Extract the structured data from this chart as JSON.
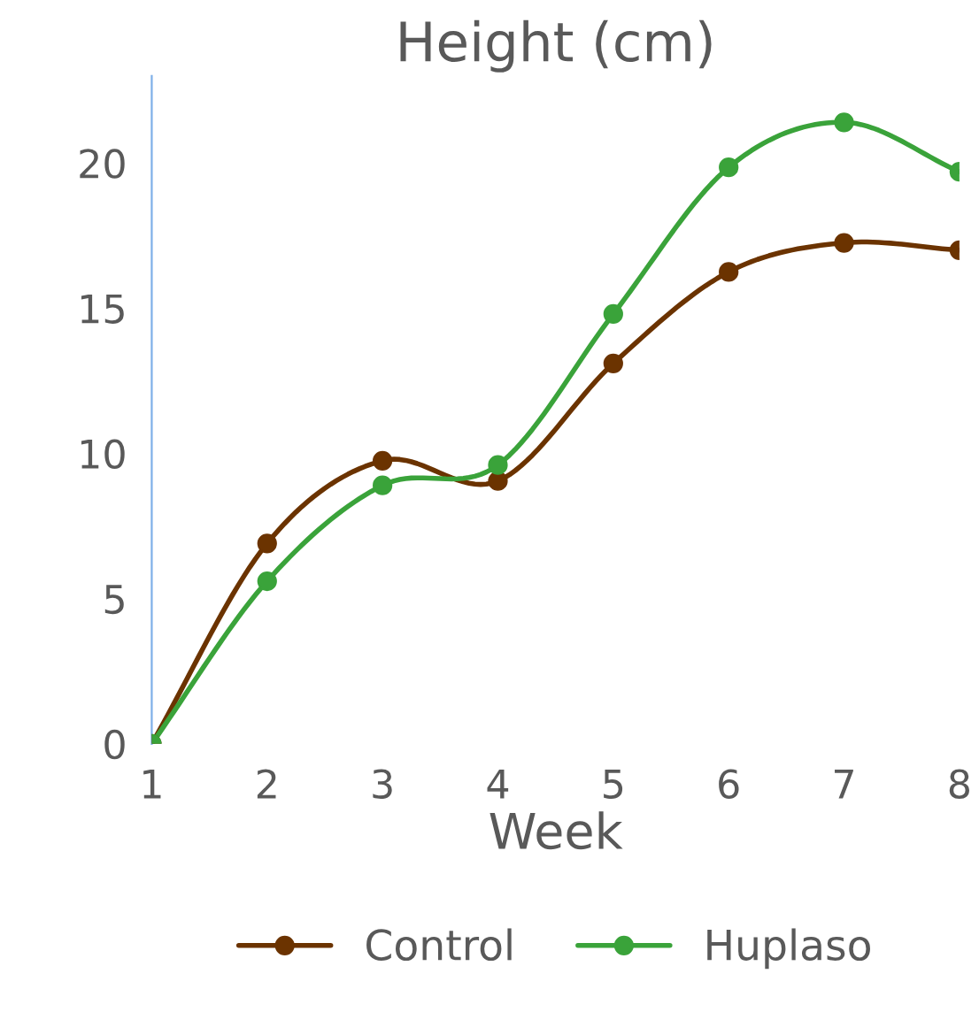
{
  "chart_data": {
    "type": "line",
    "title": "Height (cm)",
    "xlabel": "Week",
    "x": [
      1,
      2,
      3,
      4,
      5,
      6,
      7,
      8
    ],
    "series": [
      {
        "name": "Control",
        "color": "#6b3300",
        "values": [
          0,
          6.9,
          9.75,
          9.05,
          13.1,
          16.25,
          17.25,
          17.0
        ]
      },
      {
        "name": "Huplaso",
        "color": "#3aa33a",
        "values": [
          0,
          5.6,
          8.9,
          9.6,
          14.8,
          19.85,
          21.4,
          19.7
        ]
      }
    ],
    "xlim": [
      1,
      8
    ],
    "xticks": [
      1,
      2,
      3,
      4,
      5,
      6,
      7,
      8
    ],
    "ylim": [
      0,
      23
    ],
    "yticks": [
      0,
      5,
      10,
      15,
      20
    ],
    "grid": false,
    "legend": "bottom",
    "marker": "circle",
    "line_style": "solid"
  }
}
